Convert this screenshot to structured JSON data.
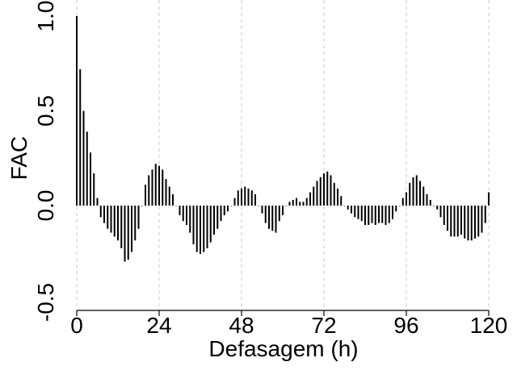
{
  "chart_data": {
    "type": "bar",
    "title": "",
    "xlabel": "Defasagem (h)",
    "ylabel": "FAC",
    "xlim": [
      0,
      120
    ],
    "ylim": [
      -0.5,
      1.0
    ],
    "xticks": [
      0,
      24,
      48,
      72,
      96,
      120
    ],
    "xtick_labels": [
      "0",
      "24",
      "48",
      "72",
      "96",
      "120"
    ],
    "yticks": [
      -0.5,
      0.0,
      0.5,
      1.0
    ],
    "ytick_labels": [
      "-0.5",
      "0.0",
      "0.5",
      "1.0"
    ],
    "grid": "vertical dashed at x ticks",
    "bar_color": "#000000",
    "grid_color": "#c8c8c8",
    "series": [
      {
        "x": [
          0,
          1,
          2,
          3,
          4,
          5,
          6,
          7,
          8,
          9,
          10,
          11,
          12,
          13,
          14,
          15,
          16,
          17,
          18,
          19,
          20,
          21,
          22,
          23,
          24,
          25,
          26,
          27,
          28,
          29,
          30,
          31,
          32,
          33,
          34,
          35,
          36,
          37,
          38,
          39,
          40,
          41,
          42,
          43,
          44,
          45,
          46,
          47,
          48,
          49,
          50,
          51,
          52,
          53,
          54,
          55,
          56,
          57,
          58,
          59,
          60,
          61,
          62,
          63,
          64,
          65,
          66,
          67,
          68,
          69,
          70,
          71,
          72,
          73,
          74,
          75,
          76,
          77,
          78,
          79,
          80,
          81,
          82,
          83,
          84,
          85,
          86,
          87,
          88,
          89,
          90,
          91,
          92,
          93,
          94,
          95,
          96,
          97,
          98,
          99,
          100,
          101,
          102,
          103,
          104,
          105,
          106,
          107,
          108,
          109,
          110,
          111,
          112,
          113,
          114,
          115,
          116,
          117,
          118,
          119,
          120
        ],
        "values": [
          1.0,
          0.72,
          0.5,
          0.39,
          0.28,
          0.17,
          0.04,
          -0.06,
          -0.09,
          -0.12,
          -0.14,
          -0.16,
          -0.18,
          -0.22,
          -0.29,
          -0.28,
          -0.24,
          -0.18,
          -0.12,
          0.0,
          0.11,
          0.16,
          0.19,
          0.22,
          0.21,
          0.19,
          0.14,
          0.1,
          0.06,
          0.0,
          -0.05,
          -0.08,
          -0.1,
          -0.14,
          -0.2,
          -0.24,
          -0.25,
          -0.24,
          -0.22,
          -0.19,
          -0.15,
          -0.12,
          -0.08,
          -0.05,
          -0.03,
          0.0,
          0.04,
          0.08,
          0.09,
          0.1,
          0.09,
          0.08,
          0.06,
          0.0,
          -0.04,
          -0.09,
          -0.12,
          -0.13,
          -0.14,
          -0.08,
          -0.05,
          0.0,
          0.02,
          0.03,
          0.04,
          0.02,
          0.02,
          0.04,
          0.07,
          0.1,
          0.13,
          0.15,
          0.17,
          0.18,
          0.16,
          0.12,
          0.09,
          0.05,
          0.0,
          -0.02,
          -0.04,
          -0.06,
          -0.07,
          -0.08,
          -0.1,
          -0.1,
          -0.09,
          -0.1,
          -0.09,
          -0.09,
          -0.1,
          -0.09,
          -0.07,
          -0.03,
          0.0,
          0.04,
          0.07,
          0.12,
          0.15,
          0.16,
          0.13,
          0.1,
          0.06,
          0.03,
          0.0,
          -0.02,
          -0.06,
          -0.1,
          -0.13,
          -0.16,
          -0.16,
          -0.16,
          -0.15,
          -0.17,
          -0.18,
          -0.18,
          -0.17,
          -0.16,
          -0.14,
          -0.09,
          0.07
        ]
      }
    ]
  }
}
